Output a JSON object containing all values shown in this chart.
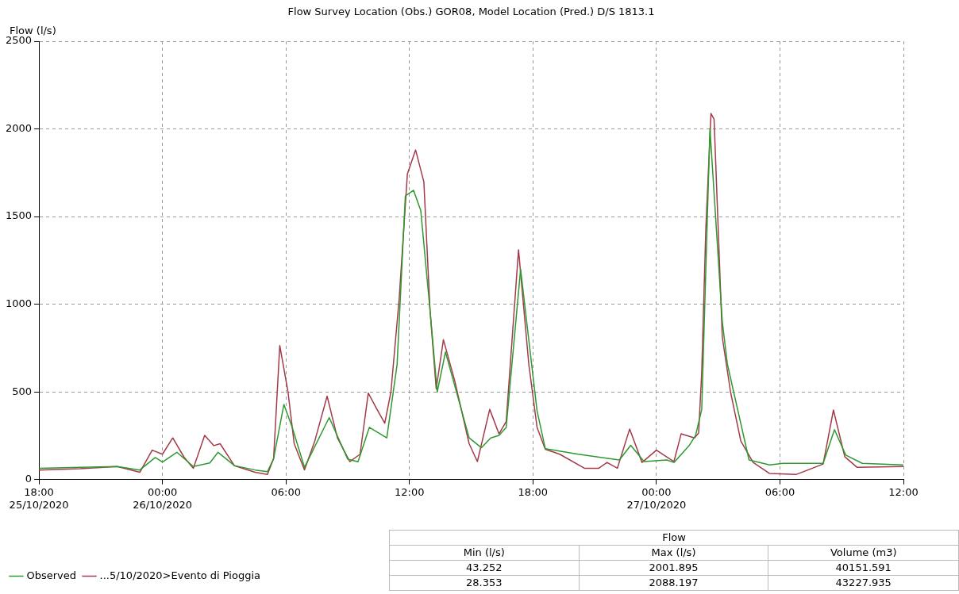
{
  "chart_data": {
    "type": "line",
    "title": "Flow Survey Location (Obs.) GOR08, Model Location (Pred.) D/S 1813.1",
    "ylabel": "Flow (l/s)",
    "xlim": [
      "2020-10-25T18:00",
      "2020-10-27T12:00"
    ],
    "xticks": [
      {
        "value": "2020-10-25T18:00",
        "label": "18:00\n25/10/2020"
      },
      {
        "value": "2020-10-26T00:00",
        "label": "00:00\n26/10/2020"
      },
      {
        "value": "2020-10-26T06:00",
        "label": "06:00"
      },
      {
        "value": "2020-10-26T12:00",
        "label": "12:00"
      },
      {
        "value": "2020-10-26T18:00",
        "label": "18:00"
      },
      {
        "value": "2020-10-27T00:00",
        "label": "00:00\n27/10/2020"
      },
      {
        "value": "2020-10-27T06:00",
        "label": "06:00"
      },
      {
        "value": "2020-10-27T12:00",
        "label": "12:00"
      }
    ],
    "ylim": [
      0,
      2500
    ],
    "yticks": [
      0,
      500,
      1000,
      1500,
      2000,
      2500
    ],
    "grid": true,
    "legend": "bottom left",
    "marker": "none",
    "line_style": "solid",
    "series": [
      {
        "name": "Observed",
        "color": "#2e9a2e",
        "x": [
          "2020-10-25T18:00",
          "2020-10-25T20:00",
          "2020-10-25T21:48",
          "2020-10-25T22:54",
          "2020-10-25T23:39",
          "2020-10-26T00:00",
          "2020-10-26T00:42",
          "2020-10-26T01:30",
          "2020-10-26T02:18",
          "2020-10-26T02:42",
          "2020-10-26T03:30",
          "2020-10-26T04:30",
          "2020-10-26T05:06",
          "2020-10-26T05:24",
          "2020-10-26T05:54",
          "2020-10-26T06:18",
          "2020-10-26T06:54",
          "2020-10-26T08:06",
          "2020-10-26T09:00",
          "2020-10-26T09:30",
          "2020-10-26T10:03",
          "2020-10-26T10:54",
          "2020-10-26T11:24",
          "2020-10-26T11:48",
          "2020-10-26T12:12",
          "2020-10-26T12:33",
          "2020-10-26T13:00",
          "2020-10-26T13:21",
          "2020-10-26T13:45",
          "2020-10-26T14:54",
          "2020-10-26T15:30",
          "2020-10-26T15:57",
          "2020-10-26T16:21",
          "2020-10-26T16:42",
          "2020-10-26T17:24",
          "2020-10-26T18:12",
          "2020-10-26T18:36",
          "2020-10-26T20:12",
          "2020-10-26T22:12",
          "2020-10-26T22:45",
          "2020-10-26T23:24",
          "2020-10-27T00:30",
          "2020-10-27T00:51",
          "2020-10-27T01:36",
          "2020-10-27T01:54",
          "2020-10-27T02:12",
          "2020-10-27T02:36",
          "2020-10-27T03:12",
          "2020-10-27T03:27",
          "2020-10-27T04:30",
          "2020-10-27T05:30",
          "2020-10-27T06:09",
          "2020-10-27T08:06",
          "2020-10-27T08:39",
          "2020-10-27T09:12",
          "2020-10-27T10:00",
          "2020-10-27T12:00"
        ],
        "values": [
          65,
          70,
          75,
          55,
          126,
          100,
          156,
          75,
          95,
          156,
          80,
          55,
          45,
          120,
          429,
          300,
          70,
          354,
          117,
          102,
          298,
          238,
          657,
          1618,
          1650,
          1534,
          966,
          500,
          728,
          238,
          182,
          238,
          252,
          298,
          1199,
          392,
          177,
          145,
          112,
          196,
          103,
          112,
          98,
          196,
          252,
          400,
          2002,
          900,
          657,
          112,
          84,
          93,
          93,
          285,
          140,
          93,
          84
        ]
      },
      {
        "name": "...5/10/2020>Evento di Pioggia",
        "color": "#a33a4a",
        "x": [
          "2020-10-25T18:00",
          "2020-10-25T20:00",
          "2020-10-25T21:48",
          "2020-10-25T22:54",
          "2020-10-25T23:30",
          "2020-10-26T00:00",
          "2020-10-26T00:30",
          "2020-10-26T01:03",
          "2020-10-26T01:30",
          "2020-10-26T02:03",
          "2020-10-26T02:30",
          "2020-10-26T02:48",
          "2020-10-26T03:30",
          "2020-10-26T04:30",
          "2020-10-26T05:06",
          "2020-10-26T05:24",
          "2020-10-26T05:42",
          "2020-10-26T06:06",
          "2020-10-26T06:24",
          "2020-10-26T06:54",
          "2020-10-26T07:24",
          "2020-10-26T08:00",
          "2020-10-26T08:30",
          "2020-10-26T09:06",
          "2020-10-26T09:36",
          "2020-10-26T10:00",
          "2020-10-26T10:24",
          "2020-10-26T10:48",
          "2020-10-26T11:06",
          "2020-10-26T11:30",
          "2020-10-26T11:54",
          "2020-10-26T12:18",
          "2020-10-26T12:42",
          "2020-10-26T13:00",
          "2020-10-26T13:18",
          "2020-10-26T13:39",
          "2020-10-26T14:12",
          "2020-10-26T14:54",
          "2020-10-26T15:18",
          "2020-10-26T15:54",
          "2020-10-26T16:21",
          "2020-10-26T16:42",
          "2020-10-26T17:18",
          "2020-10-26T17:48",
          "2020-10-26T18:12",
          "2020-10-26T18:36",
          "2020-10-26T19:18",
          "2020-10-26T20:30",
          "2020-10-26T21:12",
          "2020-10-26T21:36",
          "2020-10-26T22:06",
          "2020-10-26T22:42",
          "2020-10-26T23:18",
          "2020-10-27T00:00",
          "2020-10-27T00:51",
          "2020-10-27T01:12",
          "2020-10-27T01:51",
          "2020-10-27T02:03",
          "2020-10-27T02:12",
          "2020-10-27T02:24",
          "2020-10-27T02:39",
          "2020-10-27T02:48",
          "2020-10-27T03:12",
          "2020-10-27T03:36",
          "2020-10-27T04:06",
          "2020-10-27T04:42",
          "2020-10-27T05:30",
          "2020-10-27T06:48",
          "2020-10-27T08:06",
          "2020-10-27T08:36",
          "2020-10-27T09:09",
          "2020-10-27T09:45",
          "2020-10-27T12:00"
        ],
        "values": [
          55,
          62,
          75,
          42,
          168,
          145,
          238,
          128,
          65,
          252,
          194,
          205,
          79,
          42,
          30,
          120,
          765,
          500,
          205,
          56,
          220,
          476,
          238,
          103,
          145,
          494,
          406,
          322,
          500,
          1030,
          1744,
          1880,
          1698,
          966,
          518,
          798,
          564,
          205,
          103,
          401,
          261,
          331,
          1311,
          657,
          298,
          173,
          145,
          65,
          65,
          98,
          65,
          289,
          98,
          168,
          103,
          261,
          238,
          266,
          611,
          1432,
          2088,
          2055,
          812,
          500,
          220,
          98,
          35,
          30,
          89,
          397,
          131,
          70,
          75
        ]
      }
    ],
    "annotations": [
      "Flow",
      "Min (l/s)",
      "Max (l/s)",
      "Volume (m3)",
      "43.252",
      "2001.895",
      "40151.591",
      "28.353",
      "2088.197",
      "43227.935"
    ]
  }
}
